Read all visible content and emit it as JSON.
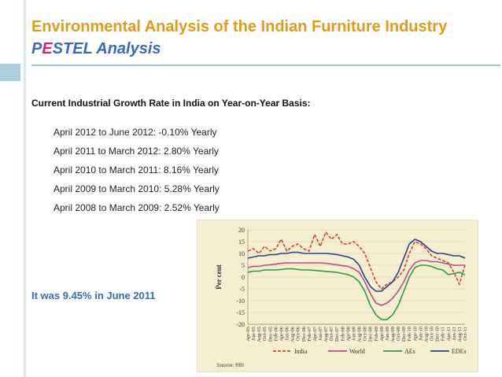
{
  "slide": {
    "title": "Environmental Analysis of the Indian Furniture Industry",
    "subtitle_p": "P",
    "subtitle_e": "E",
    "subtitle_rest": "STEL Analysis",
    "heading": "Current Industrial Growth Rate in India on Year-on-Year Basis:",
    "growth_rates": [
      "April 2012 to June 2012: -0.10% Yearly",
      "April 2011 to March 2012: 2.80% Yearly",
      "April 2010 to March 2011: 8.16% Yearly",
      "April 2009 to March 2010: 5.28% Yearly",
      "April 2008 to March 2009: 2.52% Yearly"
    ],
    "note": "It was 9.45% in June 2011"
  },
  "colors": {
    "title": "#e59a1c",
    "subtitle": "#3a6bb4",
    "subtitle_accent": "#d0247e",
    "note": "#3a6bb4",
    "chart_bg": "#f6eed0"
  },
  "chart_data": {
    "type": "line",
    "title": "",
    "xlabel": "",
    "ylabel": "Per cent",
    "ylim": [
      -20,
      20
    ],
    "yticks": [
      20,
      15,
      10,
      5,
      0,
      -5,
      -10,
      -15,
      -20
    ],
    "categories": [
      "Apr-05",
      "Jun-05",
      "Aug-05",
      "Oct-05",
      "Dec-05",
      "Feb-06",
      "Apr-06",
      "Jun-06",
      "Aug-06",
      "Oct-06",
      "Dec-06",
      "Feb-07",
      "Apr-07",
      "Jun-07",
      "Aug-07",
      "Oct-07",
      "Dec-07",
      "Feb-08",
      "Apr-08",
      "Jun-08",
      "Aug-08",
      "Oct-08",
      "Dec-08",
      "Feb-09",
      "Apr-09",
      "Jun-09",
      "Aug-09",
      "Oct-09",
      "Dec-09",
      "Feb-10",
      "Apr-10",
      "Jun-10",
      "Aug-10",
      "Oct-10",
      "Dec-10",
      "Feb-11",
      "Apr-11",
      "Jun-11",
      "Aug-11",
      "Oct-11"
    ],
    "series": [
      {
        "name": "India",
        "color": "#d9412e",
        "dash": "4,2",
        "values": [
          11,
          12,
          10,
          13,
          11,
          12,
          16,
          11,
          13,
          14,
          12,
          11,
          18,
          13,
          19,
          16,
          18,
          14,
          14,
          15,
          13,
          10,
          4,
          -2,
          -5,
          -3,
          -2,
          0,
          3,
          10,
          15,
          14,
          12,
          9,
          8,
          7,
          6,
          2,
          -3,
          5
        ]
      },
      {
        "name": "World",
        "color": "#b0528a",
        "dash": "",
        "values": [
          4,
          4.5,
          4.5,
          5,
          5.2,
          5.5,
          5.8,
          6,
          6,
          6,
          6,
          6,
          6,
          6,
          5.8,
          5.5,
          5.2,
          4.8,
          4.5,
          3.5,
          2,
          -2,
          -7,
          -11,
          -12,
          -11,
          -9,
          -6,
          -2,
          3,
          6,
          7,
          7,
          6.5,
          6.5,
          6,
          5.5,
          5,
          5,
          5
        ]
      },
      {
        "name": "AEs",
        "color": "#2e9a3e",
        "dash": "",
        "values": [
          2,
          2.5,
          2.5,
          3,
          3,
          3,
          3.2,
          3.5,
          3.5,
          3.2,
          3,
          3,
          2.8,
          2.6,
          2.4,
          2.2,
          2,
          1.5,
          1,
          0,
          -2,
          -6,
          -12,
          -16,
          -18,
          -18,
          -16,
          -12,
          -6,
          0,
          4,
          5,
          5,
          4.5,
          3.5,
          3,
          1,
          1.5,
          2,
          1
        ]
      },
      {
        "name": "EDEs",
        "color": "#27408b",
        "dash": "",
        "values": [
          8,
          8.5,
          9,
          9,
          9.5,
          9.5,
          10,
          10,
          10.5,
          10.5,
          10,
          10,
          10,
          10,
          10,
          9.8,
          9.5,
          9,
          8.5,
          7.5,
          5,
          0,
          -4,
          -6,
          -6,
          -4,
          -2,
          2,
          8,
          14,
          16,
          15,
          13,
          11,
          10,
          10,
          9.5,
          9,
          9,
          8
        ]
      }
    ],
    "legend": "bottom",
    "source": "Source: RBI"
  }
}
